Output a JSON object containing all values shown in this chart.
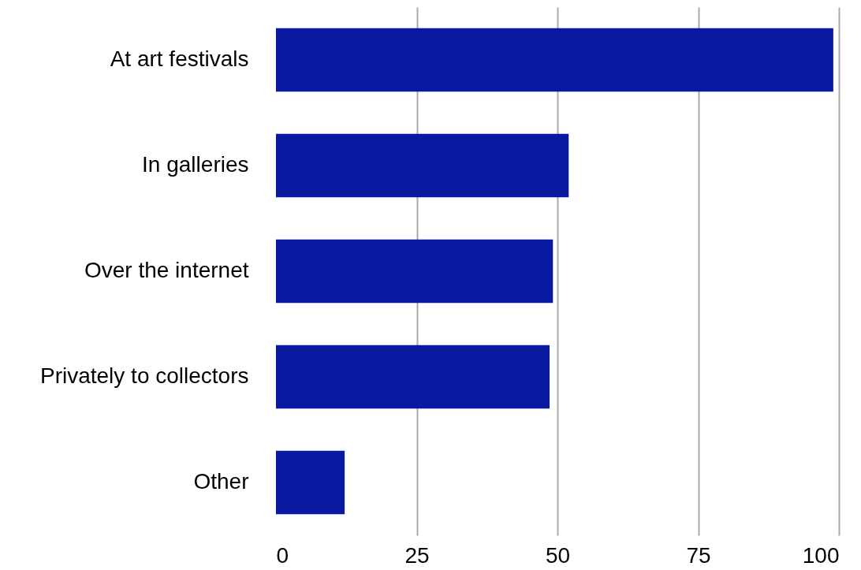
{
  "chart_data": {
    "type": "bar",
    "orientation": "horizontal",
    "categories": [
      "At art festivals",
      "In galleries",
      "Over the internet",
      "Privately to collectors",
      "Other"
    ],
    "values": [
      99,
      52,
      49.2,
      48.6,
      12.2
    ],
    "color": "#0a1aa0",
    "xlim": [
      0,
      100
    ],
    "xticks": [
      0,
      25,
      50,
      75,
      100
    ],
    "grid": "x"
  }
}
